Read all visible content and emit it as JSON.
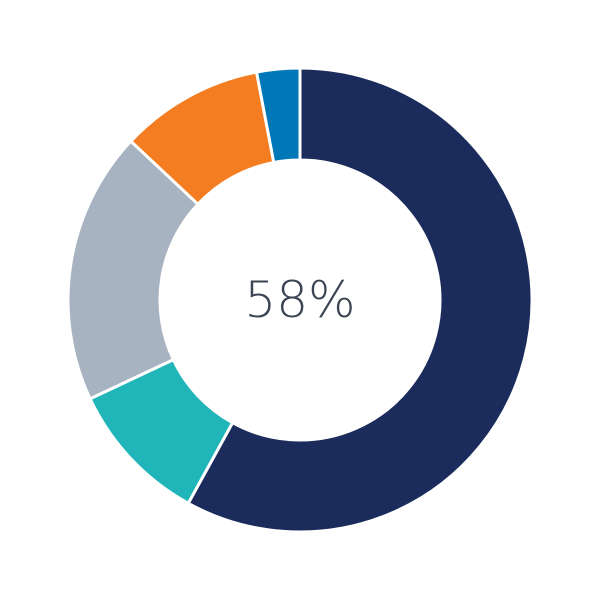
{
  "chart_data": {
    "type": "pie",
    "variant": "donut",
    "center_label": "58%",
    "values": [
      58,
      10,
      19,
      10,
      3
    ],
    "colors": [
      "#1b2b5b",
      "#20b6b9",
      "#a8b3c1",
      "#f37d20",
      "#0077b6"
    ],
    "start": "top",
    "direction": "clockwise",
    "legend": "none"
  }
}
